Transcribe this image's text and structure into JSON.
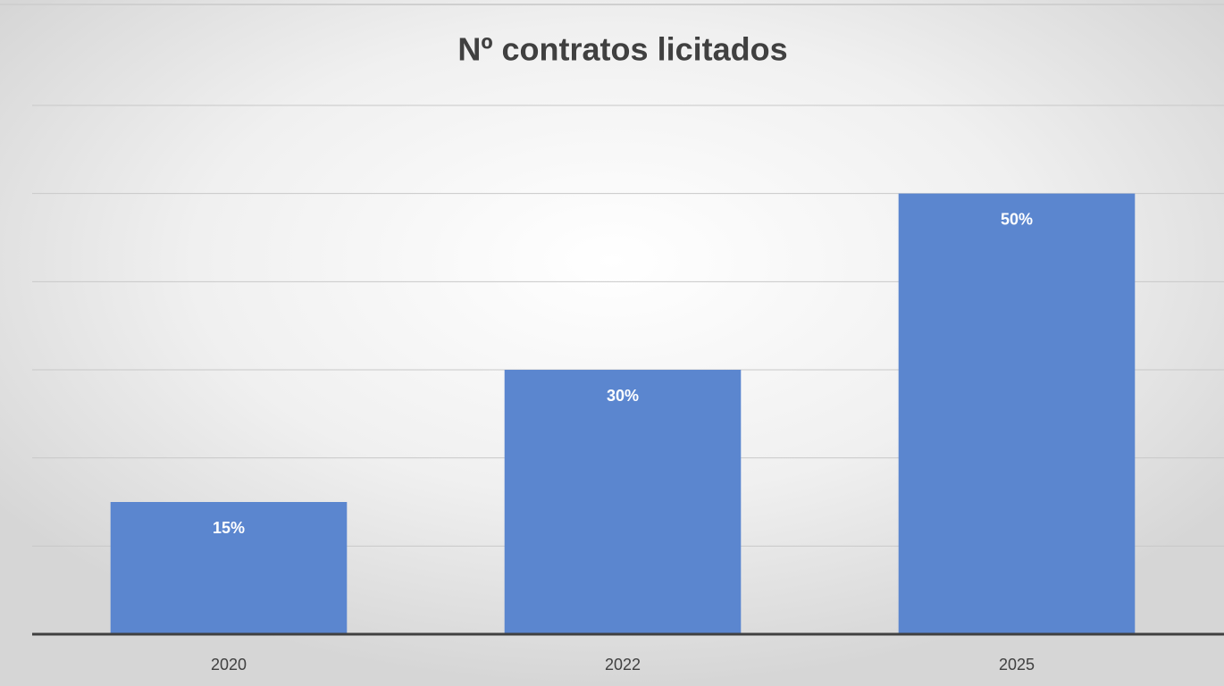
{
  "chart_data": {
    "type": "bar",
    "title": "Nº contratos licitados",
    "categories": [
      "2020",
      "2022",
      "2025"
    ],
    "values": [
      15,
      30,
      50
    ],
    "value_labels": [
      "15%",
      "30%",
      "50%"
    ],
    "color": "#5b86cf",
    "ylim": [
      0,
      60
    ],
    "yticks": [
      0,
      10,
      20,
      30,
      40,
      50,
      60
    ],
    "grid": true
  }
}
